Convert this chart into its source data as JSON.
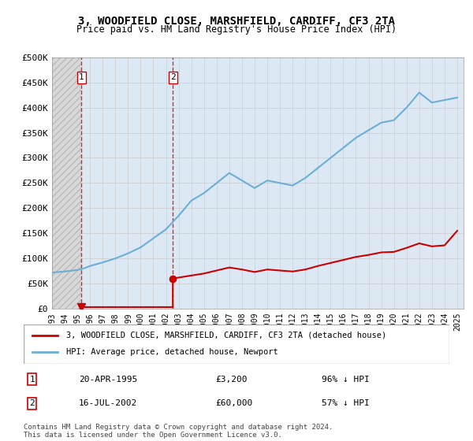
{
  "title": "3, WOODFIELD CLOSE, MARSHFIELD, CARDIFF, CF3 2TA",
  "subtitle": "Price paid vs. HM Land Registry's House Price Index (HPI)",
  "legend_label_red": "3, WOODFIELD CLOSE, MARSHFIELD, CARDIFF, CF3 2TA (detached house)",
  "legend_label_blue": "HPI: Average price, detached house, Newport",
  "footer": "Contains HM Land Registry data © Crown copyright and database right 2024.\nThis data is licensed under the Open Government Licence v3.0.",
  "sale1_date": "20-APR-1995",
  "sale1_price": 3200,
  "sale1_label": "1",
  "sale1_note": "96% ↓ HPI",
  "sale2_date": "16-JUL-2002",
  "sale2_price": 60000,
  "sale2_label": "2",
  "sale2_note": "57% ↓ HPI",
  "xmin": 1993.0,
  "xmax": 2025.5,
  "ymin": 0,
  "ymax": 500000,
  "yticks": [
    0,
    50000,
    100000,
    150000,
    200000,
    250000,
    300000,
    350000,
    400000,
    450000,
    500000
  ],
  "ytick_labels": [
    "£0",
    "£50K",
    "£100K",
    "£150K",
    "£200K",
    "£250K",
    "£300K",
    "£350K",
    "£400K",
    "£450K",
    "£500K"
  ],
  "hpi_color": "#6baed6",
  "price_color": "#cc0000",
  "hatch_color": "#bbbbbb",
  "grid_color": "#cccccc",
  "bg_color": "#dce9f5",
  "hatch_bg": "#e8e8e8",
  "sale1_x": 1995.31,
  "sale2_x": 2002.54,
  "hpi_x": [
    1993.0,
    1994.0,
    1995.0,
    1995.5,
    1996.0,
    1997.0,
    1998.0,
    1999.0,
    2000.0,
    2001.0,
    2002.0,
    2003.0,
    2004.0,
    2005.0,
    2006.0,
    2007.0,
    2008.0,
    2009.0,
    2010.0,
    2011.0,
    2012.0,
    2013.0,
    2014.0,
    2015.0,
    2016.0,
    2017.0,
    2018.0,
    2019.0,
    2020.0,
    2021.0,
    2022.0,
    2023.0,
    2024.0,
    2025.0
  ],
  "hpi_y": [
    72000,
    74000,
    77000,
    80000,
    85000,
    92000,
    100000,
    110000,
    122000,
    140000,
    158000,
    185000,
    215000,
    230000,
    250000,
    270000,
    255000,
    240000,
    255000,
    250000,
    245000,
    260000,
    280000,
    300000,
    320000,
    340000,
    355000,
    370000,
    375000,
    400000,
    430000,
    410000,
    415000,
    420000
  ],
  "price_x": [
    1995.31,
    1995.31,
    2002.54,
    2002.54,
    2003.0,
    2004.0,
    2005.0,
    2006.0,
    2007.0,
    2008.0,
    2009.0,
    2010.0,
    2011.0,
    2012.0,
    2013.0,
    2014.0,
    2015.0,
    2016.0,
    2017.0,
    2018.0,
    2019.0,
    2020.0,
    2021.0,
    2022.0,
    2023.0,
    2024.0,
    2025.0
  ],
  "price_y": [
    3200,
    3200,
    3200,
    60000,
    62000,
    66000,
    70000,
    76000,
    82000,
    78000,
    73000,
    78000,
    76000,
    74000,
    78000,
    85000,
    91000,
    97000,
    103000,
    107000,
    112000,
    113000,
    121000,
    130000,
    124000,
    126000,
    155000
  ],
  "xticks": [
    1993,
    1994,
    1995,
    1996,
    1997,
    1998,
    1999,
    2000,
    2001,
    2002,
    2003,
    2004,
    2005,
    2006,
    2007,
    2008,
    2009,
    2010,
    2011,
    2012,
    2013,
    2014,
    2015,
    2016,
    2017,
    2018,
    2019,
    2020,
    2021,
    2022,
    2023,
    2024,
    2025
  ]
}
